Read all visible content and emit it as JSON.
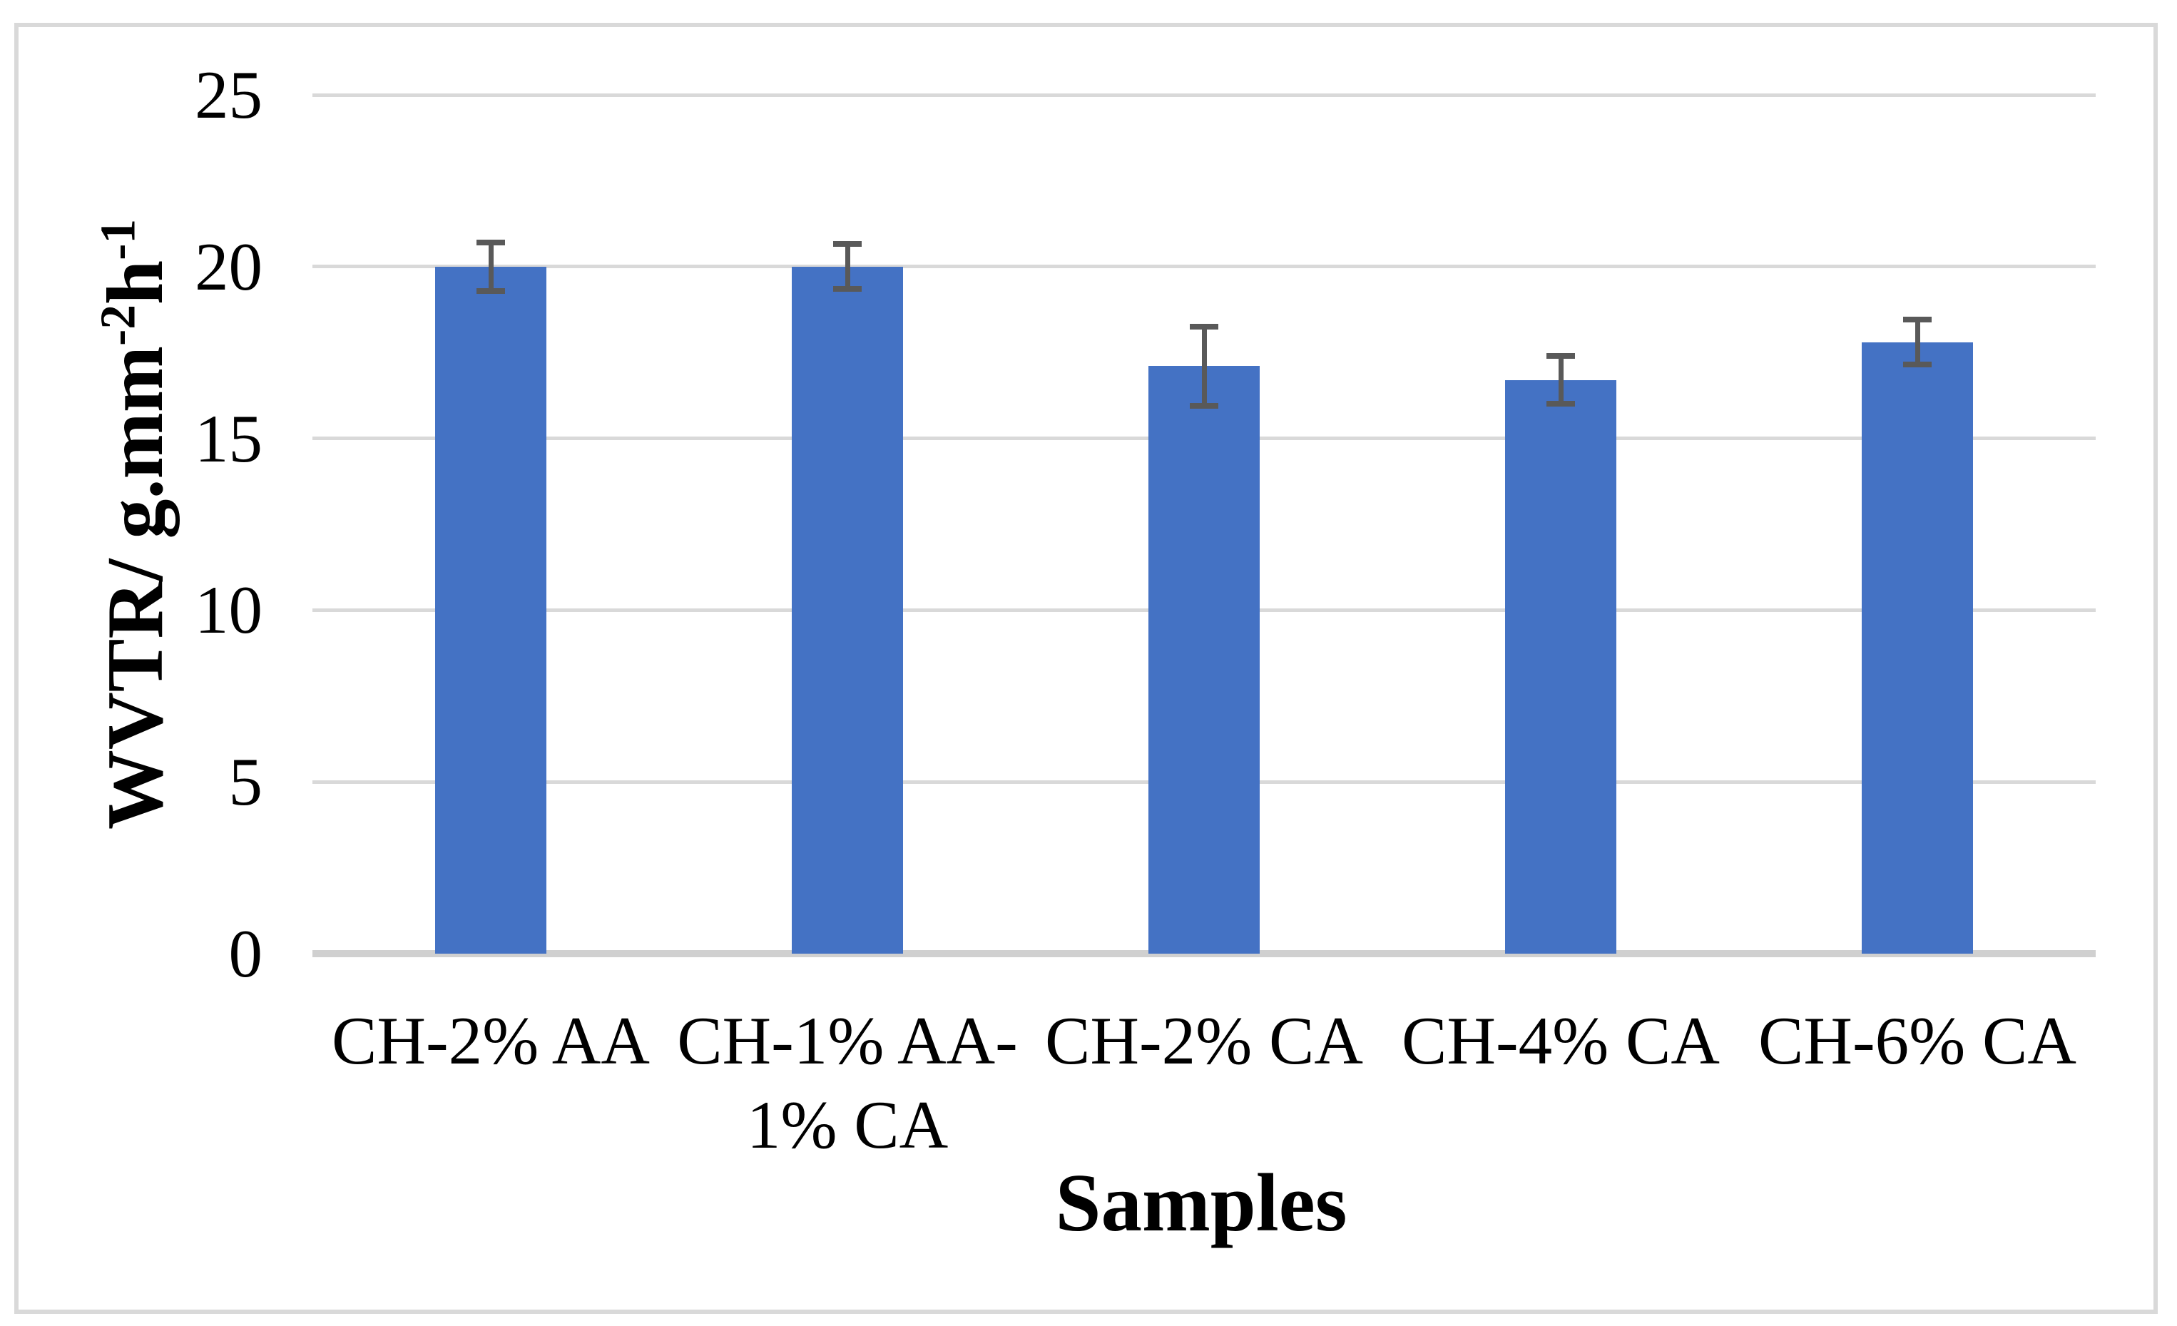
{
  "figure": {
    "background": "#FFFFFF",
    "border_color": "#D9D9D9"
  },
  "chart_data": {
    "type": "bar",
    "title": "",
    "xlabel": "Samples",
    "ylabel": "WVTR/ g.mm-2h-1",
    "y_title_parts": {
      "base1": "WVTR/ g.mm",
      "sup1": "-2",
      "base2": "h",
      "sup2": "-1"
    },
    "categories": [
      "CH-2% AA",
      "CH-1% AA-1% CA",
      "CH-2% CA",
      "CH-4% CA",
      "CH-6% CA"
    ],
    "category_display_lines": [
      [
        "CH-2% AA"
      ],
      [
        "CH-1% AA-",
        "1% CA"
      ],
      [
        "CH-2% CA"
      ],
      [
        "CH-4% CA"
      ],
      [
        "CH-6% CA"
      ]
    ],
    "series": [
      {
        "name": "WVTR",
        "values": [
          20.0,
          20.0,
          17.1,
          16.7,
          17.8
        ],
        "error_bars": [
          0.7,
          0.65,
          1.15,
          0.7,
          0.65
        ]
      }
    ],
    "yticks": [
      0,
      5,
      10,
      15,
      20,
      25
    ],
    "ylim": [
      0,
      25
    ],
    "grid": "horizontal",
    "legend": "none",
    "bar_color": "#4472C4",
    "error_bar_color": "#595959",
    "gridline_color": "#D9D9D9",
    "baseline_color": "#D0D0D0"
  }
}
